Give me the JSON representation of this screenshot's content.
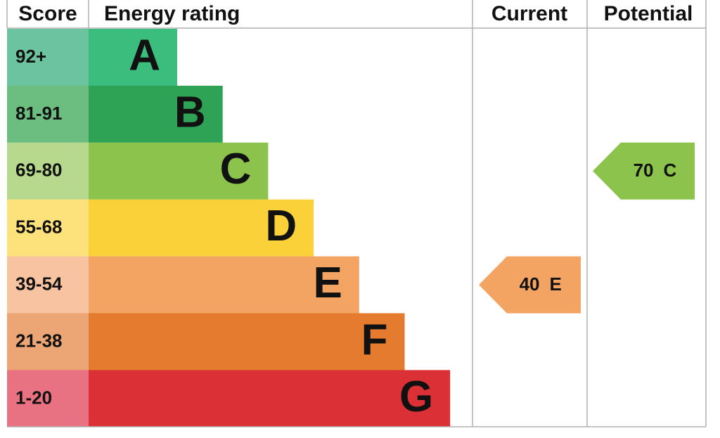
{
  "header": {
    "score": "Score",
    "rating": "Energy rating",
    "current": "Current",
    "potential": "Potential"
  },
  "bands": [
    {
      "score": "92+",
      "rating": "A",
      "color": "#3bbd7e",
      "score_color": "#6cc3a0"
    },
    {
      "score": "81-91",
      "rating": "B",
      "color": "#2ea356",
      "score_color": "#6bbd80"
    },
    {
      "score": "69-80",
      "rating": "C",
      "color": "#8bc34c",
      "score_color": "#b6d98e"
    },
    {
      "score": "55-68",
      "rating": "D",
      "color": "#fbd13a",
      "score_color": "#fde27c"
    },
    {
      "score": "39-54",
      "rating": "E",
      "color": "#f3a463",
      "score_color": "#f7c3a0"
    },
    {
      "score": "21-38",
      "rating": "F",
      "color": "#e47b2f",
      "score_color": "#eca574"
    },
    {
      "score": "1-20",
      "rating": "G",
      "color": "#db3035",
      "score_color": "#e87282"
    }
  ],
  "current": {
    "score": "40",
    "rating": "E"
  },
  "potential": {
    "score": "70",
    "rating": "C"
  }
}
